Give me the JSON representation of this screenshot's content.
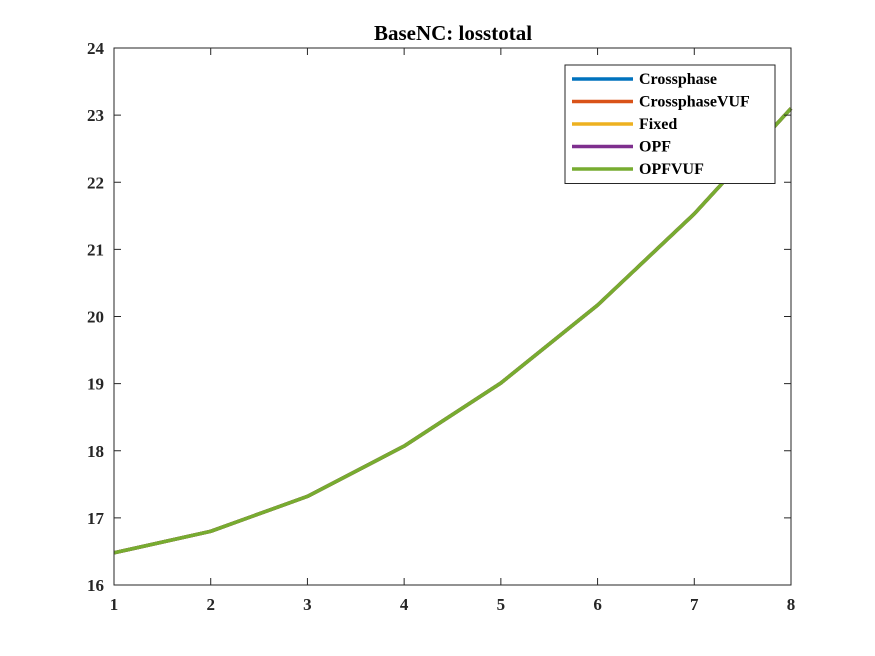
{
  "chart_data": {
    "type": "line",
    "title": "BaseNC: losstotal",
    "xlabel": "",
    "ylabel": "",
    "x": [
      1,
      2,
      3,
      4,
      5,
      6,
      7,
      8
    ],
    "xlim": [
      1,
      8
    ],
    "ylim": [
      16,
      24
    ],
    "xticks": [
      1,
      2,
      3,
      4,
      5,
      6,
      7,
      8
    ],
    "yticks": [
      16,
      17,
      18,
      19,
      20,
      21,
      22,
      23,
      24
    ],
    "grid": false,
    "legend_position": "top-right",
    "series": [
      {
        "name": "Crossphase",
        "color": "#0072BD",
        "values": [
          16.48,
          16.8,
          17.32,
          18.07,
          19.01,
          20.17,
          21.53,
          23.1
        ]
      },
      {
        "name": "CrossphaseVUF",
        "color": "#D95319",
        "values": [
          16.48,
          16.8,
          17.32,
          18.07,
          19.01,
          20.17,
          21.53,
          23.1
        ]
      },
      {
        "name": "Fixed",
        "color": "#EDB120",
        "values": [
          16.48,
          16.8,
          17.32,
          18.07,
          19.01,
          20.17,
          21.53,
          23.1
        ]
      },
      {
        "name": "OPF",
        "color": "#7E2F8E",
        "values": [
          16.48,
          16.8,
          17.32,
          18.07,
          19.01,
          20.17,
          21.53,
          23.1
        ]
      },
      {
        "name": "OPFVUF",
        "color": "#77AC30",
        "values": [
          16.48,
          16.8,
          17.32,
          18.07,
          19.01,
          20.17,
          21.53,
          23.1
        ]
      }
    ]
  }
}
